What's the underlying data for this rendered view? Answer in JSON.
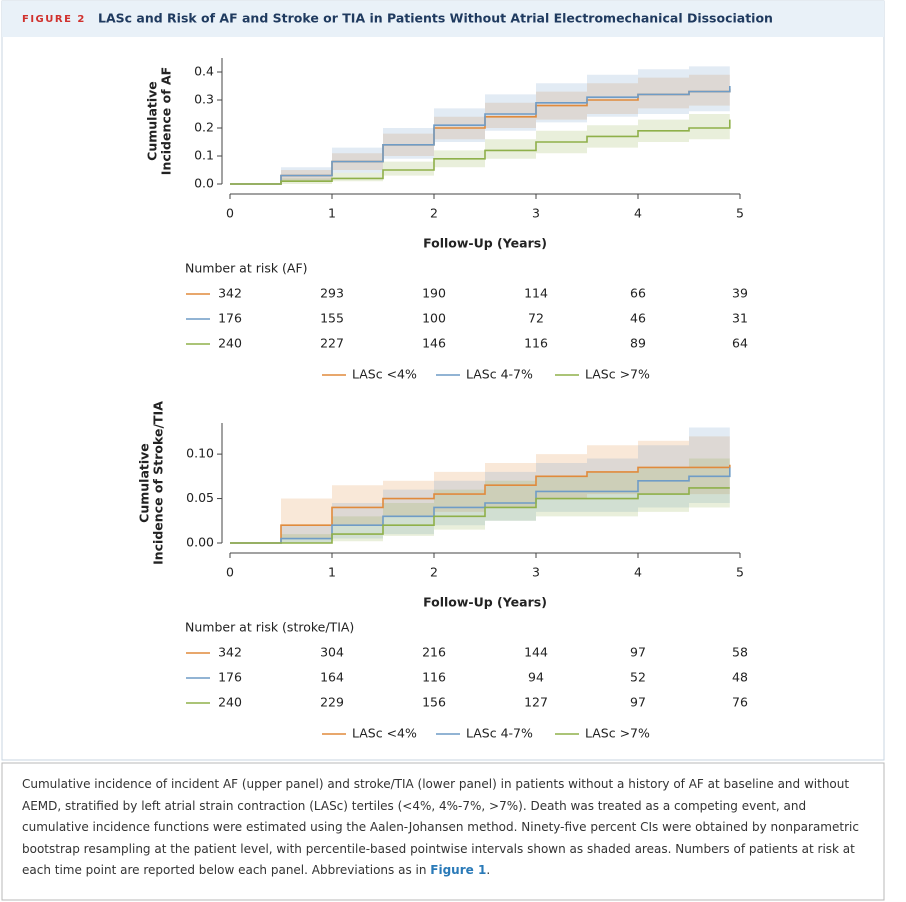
{
  "header": {
    "label": "FIGURE 2",
    "title": "LASc and Risk of AF and Stroke or TIA in Patients Without Atrial Electromechanical Dissociation"
  },
  "chart_data": [
    {
      "type": "line",
      "step": true,
      "y_label": [
        "Cumulative",
        "Incidence of AF"
      ],
      "x_label": "Follow-Up (Years)",
      "x": [
        0,
        0.5,
        1,
        1.5,
        2,
        2.5,
        3,
        3.5,
        4,
        4.5,
        4.9
      ],
      "xlim": [
        0,
        5
      ],
      "xticks": [
        0,
        1,
        2,
        3,
        4,
        5
      ],
      "ylim": [
        0,
        0.45
      ],
      "yticks": [
        {
          "value": 0,
          "label": "0.0"
        },
        0.1,
        0.2,
        0.3,
        0.4
      ],
      "series": [
        {
          "name": "LASc <4%",
          "color": "#e08a3c",
          "values": [
            0,
            0.03,
            0.08,
            0.14,
            0.2,
            0.24,
            0.28,
            0.3,
            0.32,
            0.33,
            0.34
          ],
          "lower": [
            0,
            0.01,
            0.05,
            0.1,
            0.16,
            0.2,
            0.23,
            0.25,
            0.27,
            0.28,
            0.29
          ],
          "upper": [
            0,
            0.05,
            0.11,
            0.18,
            0.24,
            0.29,
            0.33,
            0.36,
            0.38,
            0.39,
            0.4
          ]
        },
        {
          "name": "LASc 4-7%",
          "color": "#6f9cc6",
          "values": [
            0,
            0.03,
            0.08,
            0.14,
            0.21,
            0.25,
            0.29,
            0.31,
            0.32,
            0.33,
            0.35
          ],
          "lower": [
            0,
            0.01,
            0.04,
            0.09,
            0.15,
            0.19,
            0.22,
            0.24,
            0.25,
            0.26,
            0.27
          ],
          "upper": [
            0,
            0.06,
            0.13,
            0.2,
            0.27,
            0.32,
            0.36,
            0.39,
            0.41,
            0.42,
            0.44
          ]
        },
        {
          "name": "LASc >7%",
          "color": "#8fb04a",
          "values": [
            0,
            0.01,
            0.02,
            0.05,
            0.09,
            0.12,
            0.15,
            0.17,
            0.19,
            0.2,
            0.23
          ],
          "lower": [
            0,
            0,
            0.01,
            0.03,
            0.06,
            0.09,
            0.11,
            0.13,
            0.15,
            0.16,
            0.18
          ],
          "upper": [
            0,
            0.02,
            0.04,
            0.08,
            0.12,
            0.16,
            0.19,
            0.21,
            0.23,
            0.25,
            0.29
          ]
        }
      ],
      "risk_table": {
        "title": "Number at risk (AF)",
        "rows": [
          [
            342,
            293,
            190,
            114,
            66,
            39
          ],
          [
            176,
            155,
            100,
            72,
            46,
            31
          ],
          [
            240,
            227,
            146,
            116,
            89,
            64
          ]
        ]
      }
    },
    {
      "type": "line",
      "step": true,
      "y_label": [
        "Cumulative",
        "Incidence of Stroke/TIA"
      ],
      "x_label": "Follow-Up (Years)",
      "x": [
        0,
        0.5,
        1,
        1.5,
        2,
        2.5,
        3,
        3.5,
        4,
        4.5,
        4.9
      ],
      "xlim": [
        0,
        5
      ],
      "xticks": [
        0,
        1,
        2,
        3,
        4,
        5
      ],
      "ylim": [
        0,
        0.135
      ],
      "yticks": [
        {
          "value": 0,
          "label": "0.00"
        },
        0.05,
        {
          "value": 0.1,
          "label": "0.10"
        }
      ],
      "series": [
        {
          "name": "LASc <4%",
          "color": "#e08a3c",
          "values": [
            0,
            0.02,
            0.04,
            0.05,
            0.055,
            0.065,
            0.075,
            0.08,
            0.085,
            0.085,
            0.088
          ],
          "lower": [
            0,
            0.005,
            0.02,
            0.03,
            0.035,
            0.04,
            0.05,
            0.055,
            0.055,
            0.055,
            0.055
          ],
          "upper": [
            0,
            0.05,
            0.065,
            0.07,
            0.08,
            0.09,
            0.1,
            0.11,
            0.115,
            0.12,
            0.12
          ]
        },
        {
          "name": "LASc 4-7%",
          "color": "#6f9cc6",
          "values": [
            0,
            0.005,
            0.02,
            0.03,
            0.04,
            0.045,
            0.058,
            0.058,
            0.07,
            0.075,
            0.085
          ],
          "lower": [
            0,
            0,
            0.005,
            0.01,
            0.02,
            0.025,
            0.035,
            0.035,
            0.04,
            0.045,
            0.05
          ],
          "upper": [
            0,
            0.02,
            0.045,
            0.06,
            0.07,
            0.08,
            0.09,
            0.095,
            0.11,
            0.13,
            0.13
          ]
        },
        {
          "name": "LASc >7%",
          "color": "#8fb04a",
          "values": [
            0,
            0,
            0.01,
            0.02,
            0.03,
            0.04,
            0.05,
            0.05,
            0.055,
            0.062,
            0.062
          ],
          "lower": [
            0,
            0,
            0.002,
            0.008,
            0.015,
            0.025,
            0.03,
            0.03,
            0.035,
            0.04,
            0.04
          ],
          "upper": [
            0,
            0.01,
            0.03,
            0.045,
            0.06,
            0.07,
            0.075,
            0.08,
            0.085,
            0.095,
            0.11
          ]
        }
      ],
      "risk_table": {
        "title": "Number at risk (stroke/TIA)",
        "rows": [
          [
            342,
            304,
            216,
            144,
            97,
            58
          ],
          [
            176,
            164,
            116,
            94,
            52,
            48
          ],
          [
            240,
            229,
            156,
            127,
            97,
            76
          ]
        ]
      }
    }
  ],
  "caption": {
    "text": "Cumulative incidence of incident AF (upper panel) and stroke/TIA (lower panel) in patients without a history of AF at baseline and without AEMD, stratified by left atrial strain contraction (LASc) tertiles (<4%, 4%-7%, >7%). Death was treated as a competing event, and cumulative incidence functions were estimated using the Aalen-Johansen method. Ninety-five percent CIs were obtained by nonparametric bootstrap resampling at the patient level, with percentile-based pointwise intervals shown as shaded areas. Numbers of patients at risk at each time point are reported below each panel. Abbreviations as in ",
    "link": "Figure 1",
    "end": "."
  }
}
